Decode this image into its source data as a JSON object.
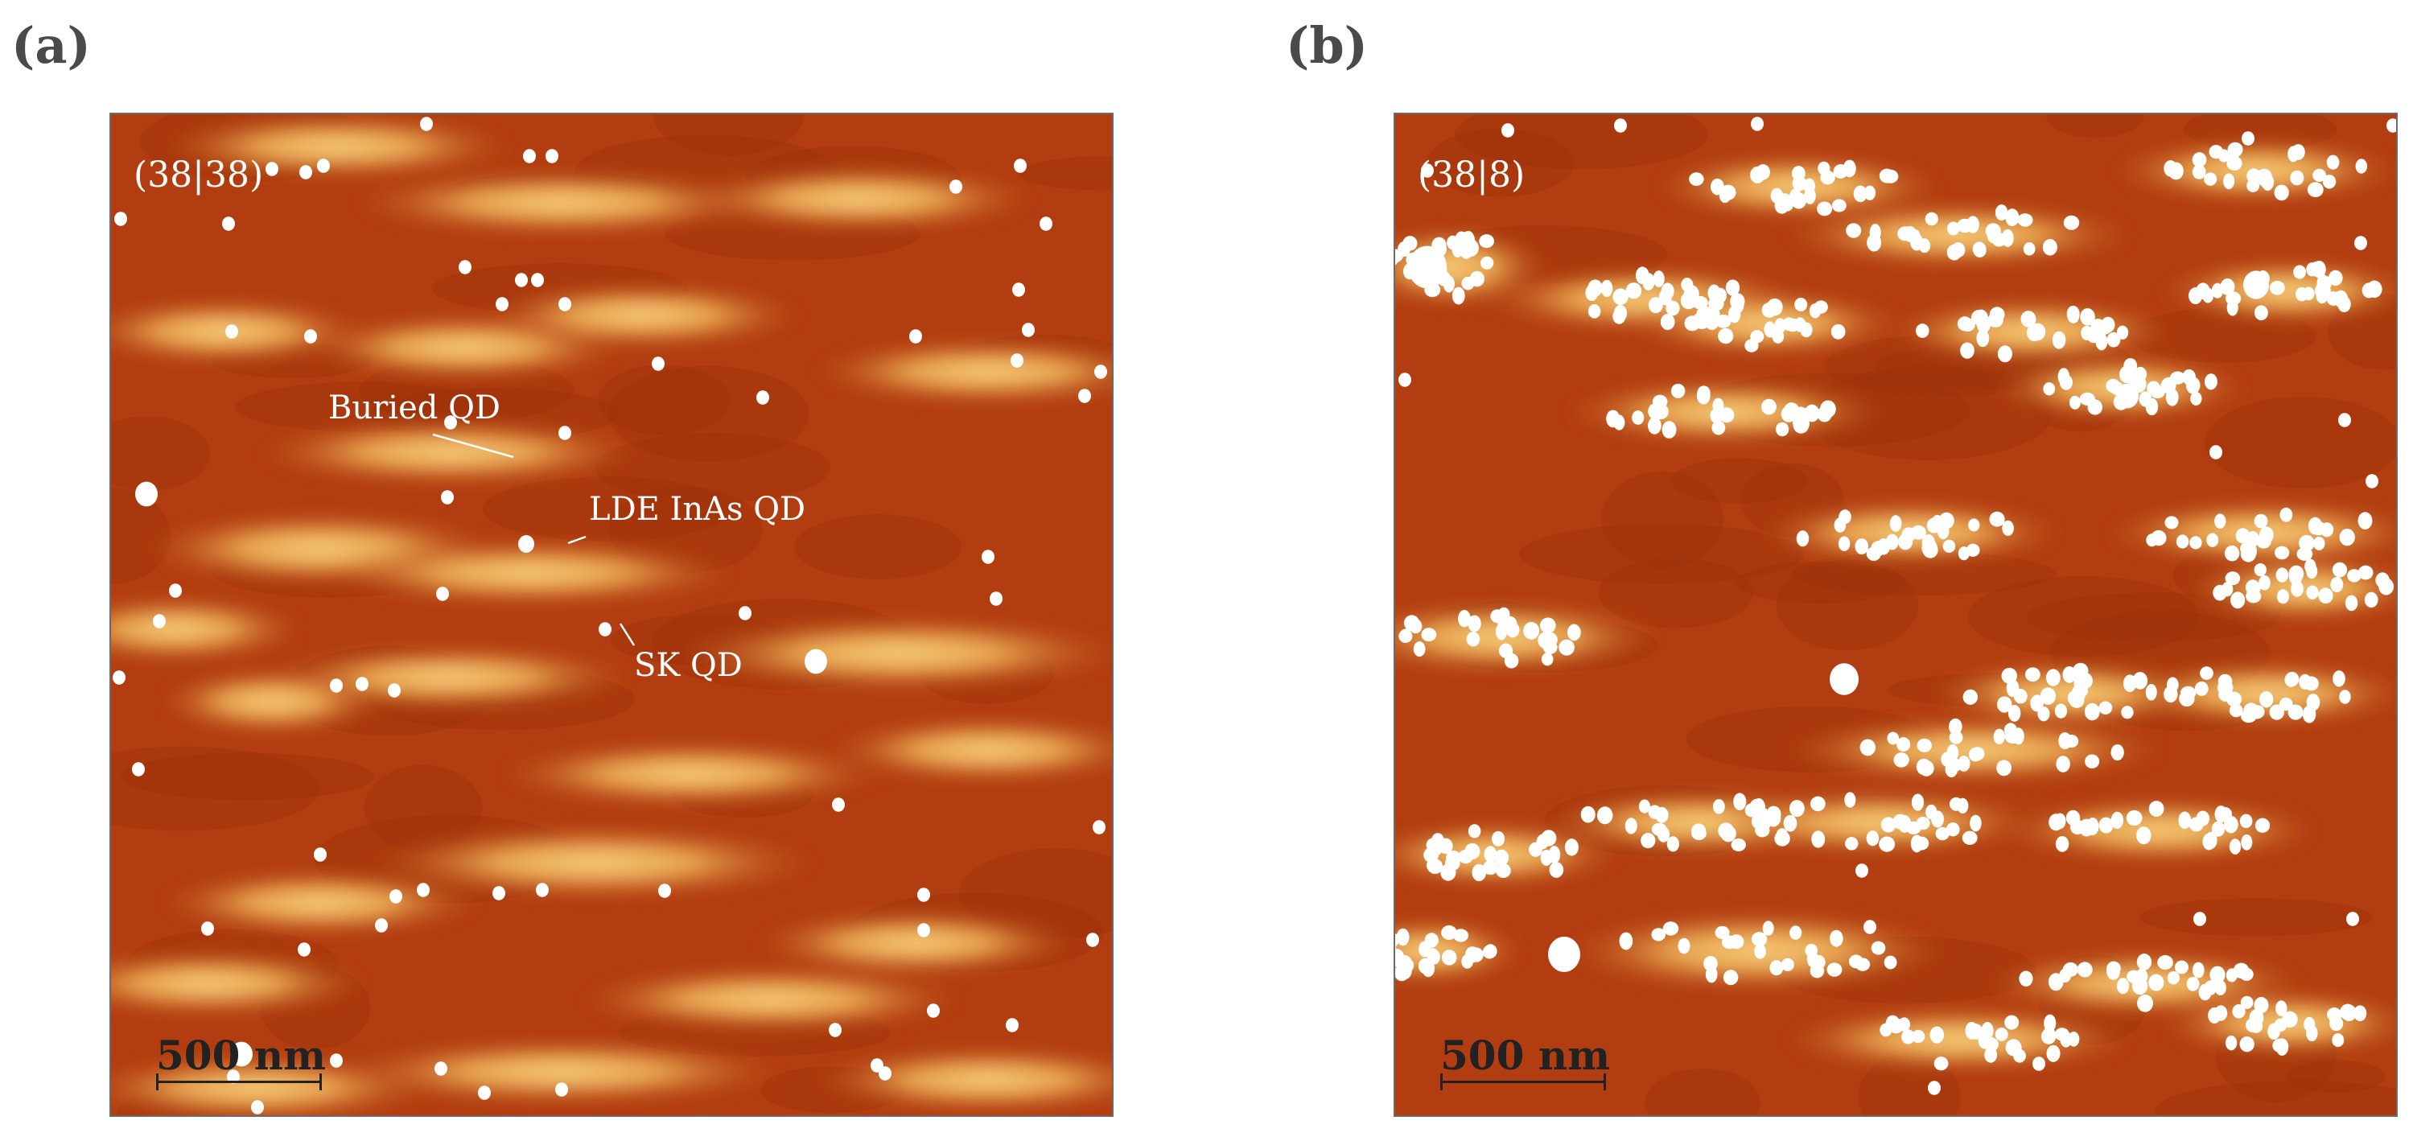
{
  "panels": [
    {
      "letter": "(a)",
      "sample_label": "(38|38)",
      "annotations": {
        "buried_qd": "Buried QD",
        "lde_inas_qd": "LDE InAs QD",
        "sk_qd": "SK QD"
      },
      "scale_bar": "500 nm"
    },
    {
      "letter": "(b)",
      "sample_label": "(38|8)",
      "scale_bar": "500 nm"
    }
  ],
  "colors": {
    "substrate": "#b23d10",
    "mound": "#f0bd6a",
    "dot": "#ffffff"
  }
}
